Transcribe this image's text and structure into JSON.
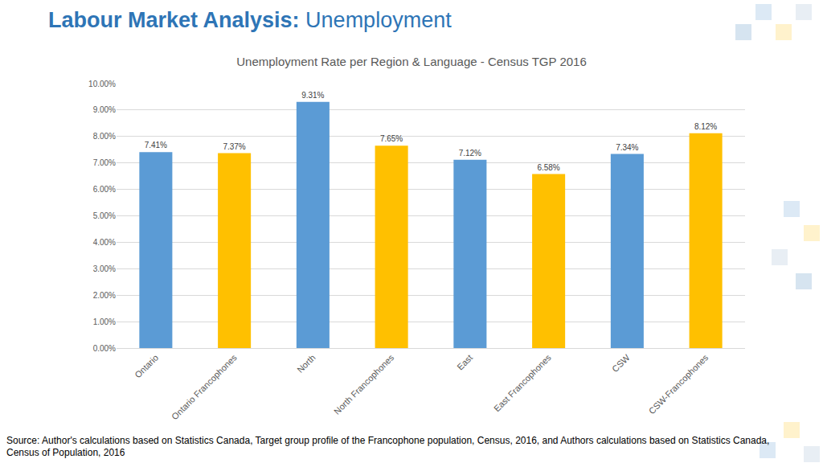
{
  "header": {
    "title": "Labour Market Analysis:",
    "subtitle": "Unemployment"
  },
  "source": "Source: Author's calculations based on Statistics Canada, Target group profile of the Francophone population, Census, 2016, and Authors calculations based on Statistics Canada, Census of Population, 2016",
  "chart_data": {
    "type": "bar",
    "title": "Unemployment Rate per Region & Language - Census TGP 2016",
    "categories": [
      "Ontario",
      "Ontario Francophones",
      "North",
      "North Francophones",
      "East",
      "East Francophones",
      "CSW",
      "CSW-Francophones"
    ],
    "values": [
      7.41,
      7.37,
      9.31,
      7.65,
      7.12,
      6.58,
      7.34,
      8.12
    ],
    "value_labels": [
      "7.41%",
      "7.37%",
      "9.31%",
      "7.65%",
      "7.12%",
      "6.58%",
      "7.34%",
      "8.12%"
    ],
    "colors": [
      "#5B9BD5",
      "#FFC000",
      "#5B9BD5",
      "#FFC000",
      "#5B9BD5",
      "#FFC000",
      "#5B9BD5",
      "#FFC000"
    ],
    "ylim": [
      0,
      10
    ],
    "yticks": [
      {
        "value": 0,
        "label": "0.00%"
      },
      {
        "value": 1,
        "label": "1.00%"
      },
      {
        "value": 2,
        "label": "2.00%"
      },
      {
        "value": 3,
        "label": "3.00%"
      },
      {
        "value": 4,
        "label": "4.00%"
      },
      {
        "value": 5,
        "label": "5.00%"
      },
      {
        "value": 6,
        "label": "6.00%"
      },
      {
        "value": 7,
        "label": "7.00%"
      },
      {
        "value": 8,
        "label": "8.00%"
      },
      {
        "value": 9,
        "label": "9.00%"
      },
      {
        "value": 10,
        "label": "10.00%"
      }
    ],
    "grid": true,
    "data_labels": true
  }
}
